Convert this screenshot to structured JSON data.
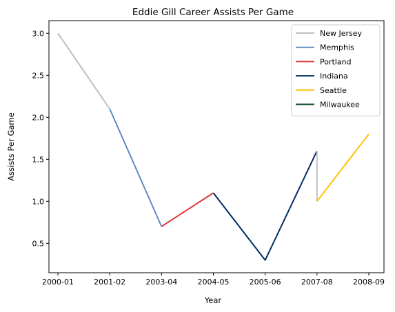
{
  "chart_data": {
    "type": "line",
    "title": "Eddie Gill Career Assists Per Game",
    "xlabel": "Year",
    "ylabel": "Assists Per Game",
    "categories": [
      "2000-01",
      "2001-02",
      "2003-04",
      "2004-05",
      "2005-06",
      "2007-08",
      "2008-09"
    ],
    "yticks": [
      "0.5",
      "1.0",
      "1.5",
      "2.0",
      "2.5",
      "3.0"
    ],
    "ylim": [
      0.15,
      3.15
    ],
    "legend_position": "top-right",
    "series": [
      {
        "name": "New Jersey",
        "color": "#bfbfbf",
        "points": [
          [
            0,
            3.0
          ],
          [
            1,
            2.1
          ]
        ]
      },
      {
        "name": "Memphis",
        "color": "#5d8ac0",
        "points": [
          [
            1,
            2.1
          ],
          [
            2,
            0.7
          ]
        ]
      },
      {
        "name": "Portland",
        "color": "#e03a3e",
        "points": [
          [
            2,
            0.7
          ],
          [
            3,
            1.1
          ]
        ]
      },
      {
        "name": "Indiana",
        "color": "#002d62",
        "points": [
          [
            3,
            1.1
          ],
          [
            4,
            0.3
          ],
          [
            5,
            1.6
          ]
        ]
      },
      {
        "name": "New Jersey",
        "color": "#bfbfbf",
        "points": [
          [
            5,
            1.6
          ],
          [
            5,
            1.0
          ]
        ],
        "legend": false
      },
      {
        "name": "Seattle",
        "color": "#ffc200",
        "points": [
          [
            5,
            1.0
          ],
          [
            6,
            1.8
          ]
        ]
      },
      {
        "name": "Milwaukee",
        "color": "#00471b",
        "points": [],
        "legend": true
      }
    ]
  }
}
